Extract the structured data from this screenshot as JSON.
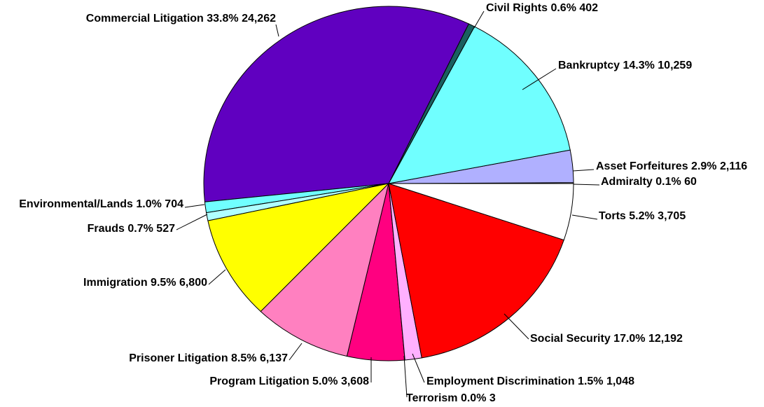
{
  "chart_data": {
    "type": "pie",
    "start_angle_deg": 0,
    "direction": "counterclockwise",
    "slices": [
      {
        "name": "Admiralty",
        "percent": "0.1%",
        "value": 60,
        "color": "#ffffff"
      },
      {
        "name": "Asset Forfeitures",
        "percent": "2.9%",
        "value": 2116,
        "color": "#b0b0ff"
      },
      {
        "name": "Bankruptcy",
        "percent": "14.3%",
        "value": 10259,
        "color": "#70ffff"
      },
      {
        "name": "Civil Rights",
        "percent": "0.6%",
        "value": 402,
        "color": "#1a6060"
      },
      {
        "name": "Commercial Litigation",
        "percent": "33.8%",
        "value": 24262,
        "color": "#6000c0"
      },
      {
        "name": "Environmental/Lands",
        "percent": "1.0%",
        "value": 704,
        "color": "#70ffff"
      },
      {
        "name": "Frauds",
        "percent": "0.7%",
        "value": 527,
        "color": "#b0ffff"
      },
      {
        "name": "Immigration",
        "percent": "9.5%",
        "value": 6800,
        "color": "#ffff00"
      },
      {
        "name": "Prisoner Litigation",
        "percent": "8.5%",
        "value": 6137,
        "color": "#ff80c0"
      },
      {
        "name": "Program Litigation",
        "percent": "5.0%",
        "value": 3608,
        "color": "#ff0080"
      },
      {
        "name": "Terrorism",
        "percent": "0.0%",
        "value": 3,
        "color": "#ffffff"
      },
      {
        "name": "Employment Discrimination",
        "percent": "1.5%",
        "value": 1048,
        "color": "#ffb0ff"
      },
      {
        "name": "Social Security",
        "percent": "17.0%",
        "value": 12192,
        "color": "#ff0000"
      },
      {
        "name": "Torts",
        "percent": "5.2%",
        "value": 3705,
        "color": "#ffffff"
      }
    ]
  }
}
